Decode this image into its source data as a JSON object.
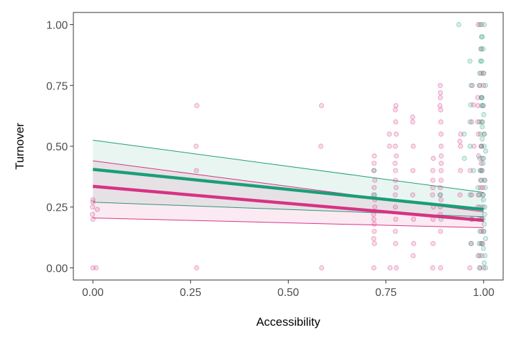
{
  "chart_data": {
    "type": "scatter",
    "title": "",
    "xlabel": "Accessibility",
    "ylabel": "Turnover",
    "xlim": [
      -0.05,
      1.05
    ],
    "ylim": [
      -0.05,
      1.05
    ],
    "grid": false,
    "legend": "none",
    "x_ticks": [
      0.0,
      0.25,
      0.5,
      0.75,
      1.0
    ],
    "x_tick_labels": [
      "0.00",
      "0.25",
      "0.50",
      "0.75",
      "1.00"
    ],
    "y_ticks": [
      0.0,
      0.25,
      0.5,
      0.75,
      1.0
    ],
    "y_tick_labels": [
      "0.00",
      "0.25",
      "0.50",
      "0.75",
      "1.00"
    ],
    "colors": {
      "pink": "#d63384",
      "green": "#1b9e77",
      "axis": "#333333"
    },
    "series": [
      {
        "color": "#d63384",
        "fit_line": {
          "x": [
            0.0,
            1.0
          ],
          "y": [
            0.335,
            0.195
          ]
        },
        "ci_band": {
          "x": [
            0.0,
            1.0
          ],
          "lower": [
            0.205,
            0.165
          ],
          "upper": [
            0.44,
            0.23
          ]
        },
        "point_columns": [
          {
            "x": 0.0,
            "y": [
              0.0,
              0.2,
              0.22,
              0.25,
              0.27,
              0.28
            ]
          },
          {
            "x": 0.01,
            "y": [
              0.0,
              0.24
            ]
          },
          {
            "x": 0.265,
            "y": [
              0.0,
              0.4,
              0.5,
              0.667
            ]
          },
          {
            "x": 0.585,
            "y": [
              0.0,
              0.5,
              0.667
            ]
          },
          {
            "x": 0.72,
            "y": [
              0.0,
              0.1,
              0.12,
              0.15,
              0.18,
              0.2,
              0.22,
              0.25,
              0.28,
              0.3,
              0.33,
              0.36,
              0.4,
              0.43,
              0.46
            ]
          },
          {
            "x": 0.76,
            "y": [
              0.0,
              0.5,
              0.55
            ]
          },
          {
            "x": 0.775,
            "y": [
              0.0,
              0.1,
              0.15,
              0.2,
              0.25,
              0.3,
              0.33,
              0.36,
              0.4,
              0.43,
              0.46,
              0.5,
              0.55,
              0.6,
              0.65,
              0.667
            ]
          },
          {
            "x": 0.82,
            "y": [
              0.05,
              0.1,
              0.2,
              0.3,
              0.4,
              0.5,
              0.6,
              0.62
            ]
          },
          {
            "x": 0.87,
            "y": [
              0.0,
              0.1,
              0.2,
              0.25,
              0.3,
              0.33,
              0.36,
              0.4,
              0.45
            ]
          },
          {
            "x": 0.89,
            "y": [
              0.0,
              0.15,
              0.22,
              0.25,
              0.28,
              0.3,
              0.33,
              0.36,
              0.4,
              0.43,
              0.46,
              0.5,
              0.55,
              0.6,
              0.65,
              0.667,
              0.7,
              0.72,
              0.75
            ]
          },
          {
            "x": 0.94,
            "y": [
              0.3,
              0.4,
              0.5,
              0.52,
              0.55
            ]
          },
          {
            "x": 0.97,
            "y": [
              0.0,
              0.1,
              0.2,
              0.3,
              0.4,
              0.5,
              0.6,
              0.67,
              0.75
            ]
          },
          {
            "x": 0.99,
            "y": [
              0.0,
              0.05,
              0.1,
              0.15,
              0.2,
              0.25,
              0.3,
              0.33,
              0.36,
              0.4,
              0.43,
              0.46,
              0.5,
              0.55,
              0.6,
              0.667,
              0.7,
              0.75,
              0.8,
              0.9,
              1.0
            ]
          },
          {
            "x": 1.0,
            "y": [
              0.0,
              0.05,
              0.1,
              0.15,
              0.2,
              0.25,
              0.3,
              0.33,
              0.36,
              0.4,
              0.45,
              0.5,
              0.55,
              0.6,
              0.667,
              0.7,
              0.75,
              0.8,
              1.0
            ]
          }
        ]
      },
      {
        "color": "#1b9e77",
        "fit_line": {
          "x": [
            0.0,
            1.0
          ],
          "y": [
            0.405,
            0.24
          ]
        },
        "ci_band": {
          "x": [
            0.0,
            1.0
          ],
          "lower": [
            0.27,
            0.21
          ],
          "upper": [
            0.525,
            0.31
          ]
        },
        "point_columns": [
          {
            "x": 0.72,
            "y": [
              0.3,
              0.4
            ]
          },
          {
            "x": 0.89,
            "y": [
              0.2,
              0.3
            ]
          },
          {
            "x": 0.935,
            "y": [
              1.0
            ]
          },
          {
            "x": 0.95,
            "y": [
              0.45,
              0.55
            ]
          },
          {
            "x": 0.97,
            "y": [
              0.1,
              0.2,
              0.3,
              0.4,
              0.5,
              0.6,
              0.67,
              0.75,
              0.85
            ]
          },
          {
            "x": 0.99,
            "y": [
              0.0,
              0.05,
              0.1,
              0.15,
              0.2,
              0.25,
              0.3,
              0.33,
              0.36,
              0.4,
              0.45,
              0.5,
              0.55,
              0.6,
              0.667,
              0.7,
              0.75,
              0.8,
              0.85,
              0.9,
              0.95,
              1.0
            ]
          },
          {
            "x": 1.0,
            "y": [
              0.0,
              0.02,
              0.05,
              0.08,
              0.1,
              0.12,
              0.15,
              0.18,
              0.2,
              0.22,
              0.25,
              0.28,
              0.3,
              0.33,
              0.36,
              0.4,
              0.43,
              0.45,
              0.48,
              0.5,
              0.53,
              0.55,
              0.58,
              0.6,
              0.63,
              0.667,
              0.7,
              0.75,
              0.8,
              0.85,
              0.9,
              0.95,
              1.0
            ]
          }
        ]
      }
    ]
  }
}
